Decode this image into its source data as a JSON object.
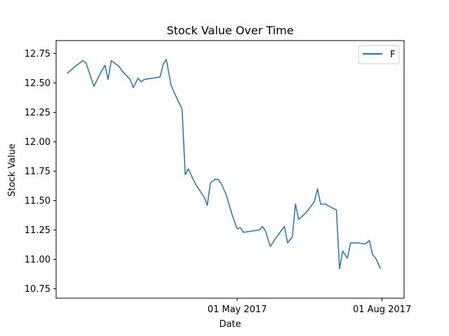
{
  "chart_data": {
    "type": "line",
    "title": "Stock Value Over Time",
    "xlabel": "Date",
    "ylabel": "Stock Value",
    "xlim": [
      "2017-01-06",
      "2017-08-15"
    ],
    "ylim": [
      10.67,
      12.86
    ],
    "x_ticks": [
      {
        "date": "2017-05-01",
        "label": "01 May 2017"
      },
      {
        "date": "2017-08-01",
        "label": "01 Aug 2017"
      }
    ],
    "y_ticks": [
      10.75,
      11.0,
      11.25,
      11.5,
      11.75,
      12.0,
      12.25,
      12.5,
      12.75
    ],
    "legend": {
      "position": "top-right",
      "entries": [
        "F"
      ]
    },
    "grid": false,
    "series": [
      {
        "name": "F",
        "color": "#1f77b4",
        "points": [
          [
            "2017-01-13",
            12.58
          ],
          [
            "2017-01-18",
            12.64
          ],
          [
            "2017-01-23",
            12.69
          ],
          [
            "2017-01-25",
            12.67
          ],
          [
            "2017-01-30",
            12.47
          ],
          [
            "2017-02-03",
            12.58
          ],
          [
            "2017-02-06",
            12.65
          ],
          [
            "2017-02-08",
            12.53
          ],
          [
            "2017-02-10",
            12.69
          ],
          [
            "2017-02-13",
            12.66
          ],
          [
            "2017-02-15",
            12.64
          ],
          [
            "2017-02-17",
            12.6
          ],
          [
            "2017-02-22",
            12.53
          ],
          [
            "2017-02-24",
            12.46
          ],
          [
            "2017-02-27",
            12.54
          ],
          [
            "2017-03-01",
            12.51
          ],
          [
            "2017-03-03",
            12.53
          ],
          [
            "2017-03-08",
            12.54
          ],
          [
            "2017-03-13",
            12.55
          ],
          [
            "2017-03-15",
            12.66
          ],
          [
            "2017-03-17",
            12.7
          ],
          [
            "2017-03-20",
            12.48
          ],
          [
            "2017-03-24",
            12.36
          ],
          [
            "2017-03-27",
            12.28
          ],
          [
            "2017-03-29",
            11.72
          ],
          [
            "2017-03-31",
            11.77
          ],
          [
            "2017-04-03",
            11.68
          ],
          [
            "2017-04-05",
            11.63
          ],
          [
            "2017-04-10",
            11.53
          ],
          [
            "2017-04-12",
            11.46
          ],
          [
            "2017-04-14",
            11.65
          ],
          [
            "2017-04-17",
            11.68
          ],
          [
            "2017-04-19",
            11.68
          ],
          [
            "2017-04-21",
            11.64
          ],
          [
            "2017-04-24",
            11.55
          ],
          [
            "2017-04-26",
            11.46
          ],
          [
            "2017-04-28",
            11.37
          ],
          [
            "2017-05-01",
            11.26
          ],
          [
            "2017-05-03",
            11.27
          ],
          [
            "2017-05-05",
            11.23
          ],
          [
            "2017-05-10",
            11.24
          ],
          [
            "2017-05-15",
            11.25
          ],
          [
            "2017-05-17",
            11.28
          ],
          [
            "2017-05-19",
            11.24
          ],
          [
            "2017-05-22",
            11.11
          ],
          [
            "2017-05-26",
            11.19
          ],
          [
            "2017-05-31",
            11.28
          ],
          [
            "2017-06-02",
            11.14
          ],
          [
            "2017-06-05",
            11.19
          ],
          [
            "2017-06-07",
            11.47
          ],
          [
            "2017-06-09",
            11.34
          ],
          [
            "2017-06-14",
            11.4
          ],
          [
            "2017-06-19",
            11.49
          ],
          [
            "2017-06-21",
            11.6
          ],
          [
            "2017-06-23",
            11.47
          ],
          [
            "2017-06-26",
            11.47
          ],
          [
            "2017-06-30",
            11.44
          ],
          [
            "2017-07-03",
            11.42
          ],
          [
            "2017-07-05",
            10.92
          ],
          [
            "2017-07-07",
            11.07
          ],
          [
            "2017-07-10",
            11.01
          ],
          [
            "2017-07-12",
            11.14
          ],
          [
            "2017-07-17",
            11.14
          ],
          [
            "2017-07-21",
            11.13
          ],
          [
            "2017-07-24",
            11.16
          ],
          [
            "2017-07-26",
            11.04
          ],
          [
            "2017-07-28",
            11.01
          ],
          [
            "2017-07-31",
            10.92
          ]
        ]
      }
    ]
  }
}
